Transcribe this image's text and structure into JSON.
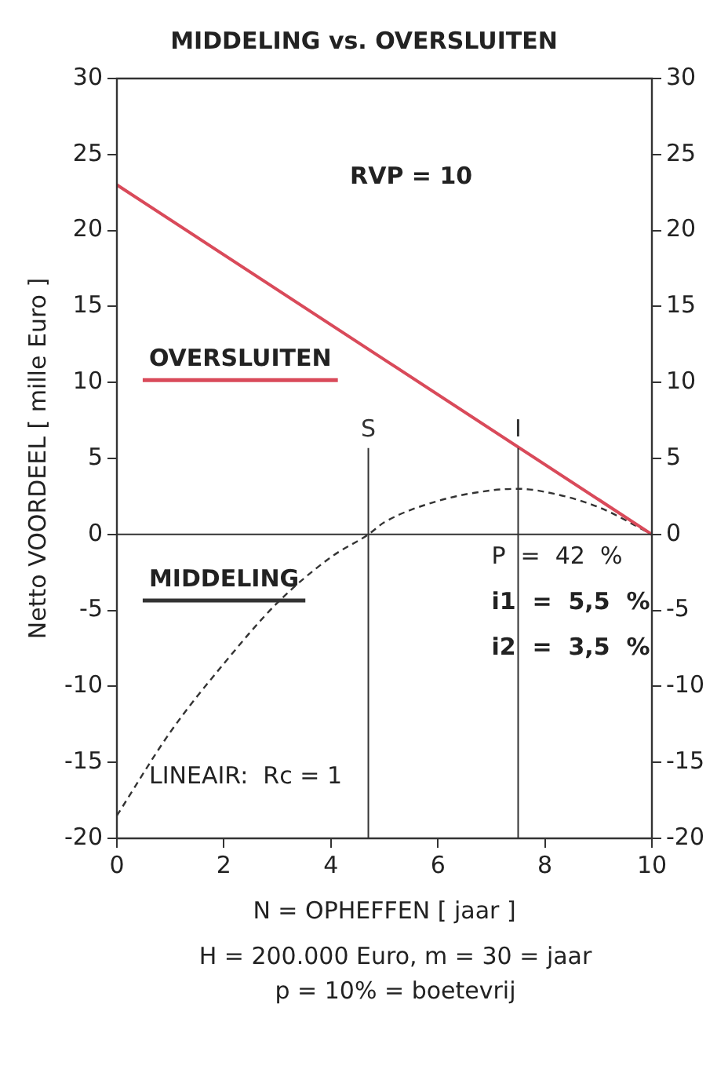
{
  "chart_data": {
    "type": "line",
    "title": "MIDDELING vs. OVERSLUITEN",
    "xlabel": "N = OPHEFFEN [ jaar ]",
    "ylabel": "Netto VOORDEEL [ mille Euro ]",
    "xlim": [
      0,
      10
    ],
    "xticks": [
      0,
      2,
      4,
      6,
      8,
      10
    ],
    "ylim": [
      -20,
      30
    ],
    "yticks": [
      -20,
      -15,
      -10,
      -5,
      0,
      5,
      10,
      15,
      20,
      25,
      30
    ],
    "y2lim": [
      -20,
      30
    ],
    "y2ticks": [
      -20,
      -15,
      -10,
      -5,
      0,
      5,
      10,
      15,
      20,
      25,
      30
    ],
    "grid": false,
    "legend": false,
    "marker": "none",
    "series": [
      {
        "name": "OVERSLUITEN",
        "color": "#d94a5a",
        "line_style": "solid",
        "x": [
          0,
          10
        ],
        "values": [
          23,
          0
        ]
      },
      {
        "name": "MIDDELING",
        "color": "#333333",
        "line_style": "dashed",
        "x": [
          0,
          1,
          2,
          3,
          4,
          4.7,
          5,
          6,
          7,
          7.5,
          8,
          9,
          10
        ],
        "values": [
          -18.5,
          -13,
          -8.5,
          -4.5,
          -1.5,
          0,
          0.8,
          2.2,
          2.9,
          3,
          2.8,
          1.8,
          0
        ]
      }
    ],
    "ref_lines": [
      {
        "axis": "y",
        "value": 0,
        "color": "#333333"
      },
      {
        "axis": "x",
        "value": 4.7,
        "label": "S",
        "color": "#333333"
      },
      {
        "axis": "x",
        "value": 7.5,
        "label": "I",
        "color": "#333333"
      }
    ],
    "annotations": [
      "RVP = 10",
      "P  =  42  %",
      "i1  =  5,5  %",
      "i2  =  3,5  %",
      "LINEAIR:  Rc = 1",
      "H = 200.000 Euro,    m = 30 = jaar",
      "p = 10% = boetevrij"
    ]
  }
}
